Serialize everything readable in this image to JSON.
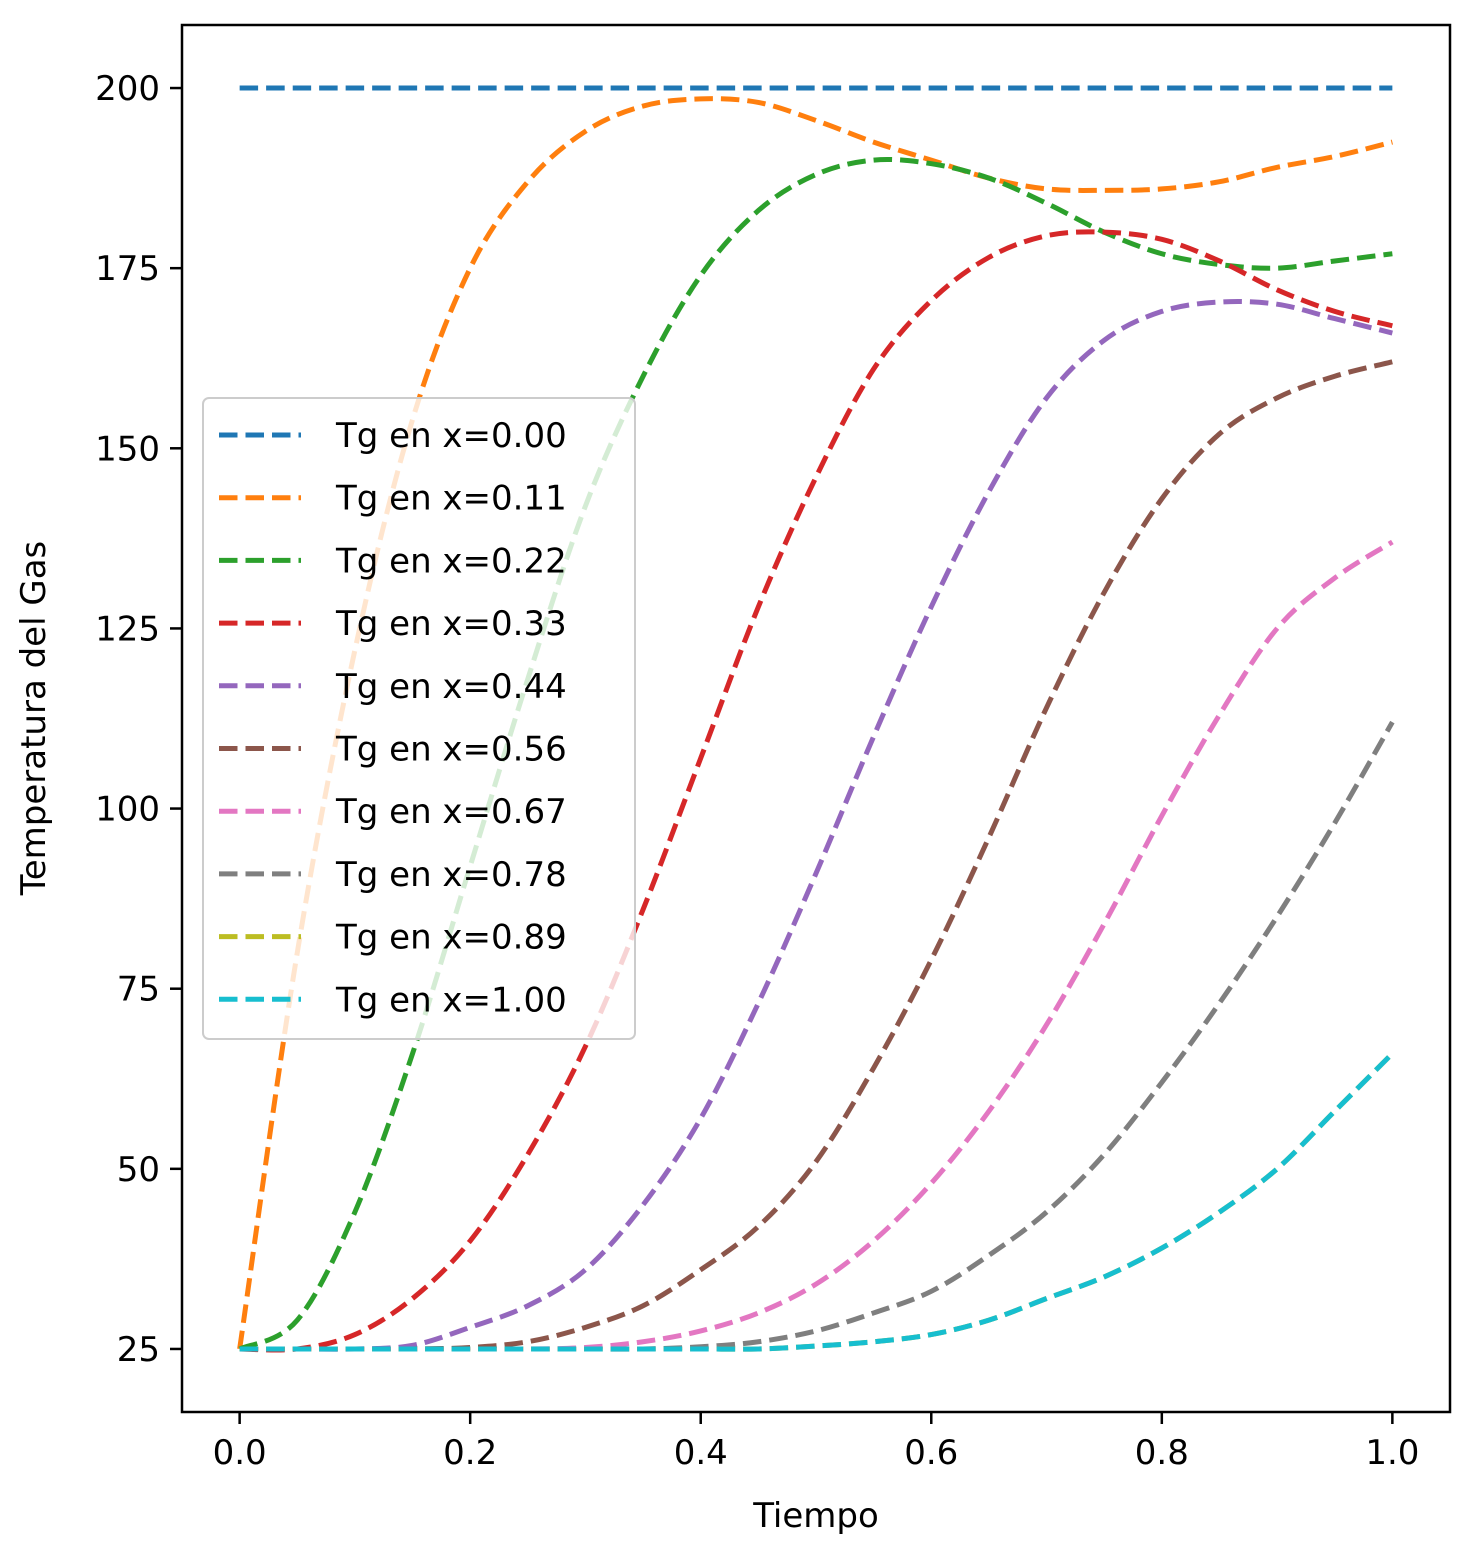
{
  "chart_data": {
    "type": "line",
    "title": "",
    "xlabel": "Tiempo",
    "ylabel": "Temperatura del Gas",
    "xlim": [
      -0.05,
      1.05
    ],
    "ylim": [
      16.25,
      208.75
    ],
    "xticks": [
      0.0,
      0.2,
      0.4,
      0.6,
      0.8,
      1.0
    ],
    "xtick_labels": [
      "0.0",
      "0.2",
      "0.4",
      "0.6",
      "0.8",
      "1.0"
    ],
    "yticks": [
      25,
      50,
      75,
      100,
      125,
      150,
      175,
      200
    ],
    "ytick_labels": [
      "25",
      "50",
      "75",
      "100",
      "125",
      "150",
      "175",
      "200"
    ],
    "grid": false,
    "legend_position": "center-left",
    "line_style": "dashed",
    "x": [
      0.0,
      0.05,
      0.1,
      0.15,
      0.2,
      0.25,
      0.3,
      0.35,
      0.4,
      0.45,
      0.5,
      0.55,
      0.6,
      0.65,
      0.7,
      0.75,
      0.8,
      0.85,
      0.9,
      0.95,
      1.0
    ],
    "series": [
      {
        "name": "Tg en x=0.00",
        "color": "#1f77b4",
        "values": [
          200,
          200,
          200,
          200,
          200,
          200,
          200,
          200,
          200,
          200,
          200,
          200,
          200,
          200,
          200,
          200,
          200,
          200,
          200,
          200,
          200
        ]
      },
      {
        "name": "Tg en x=0.11",
        "color": "#ff7f0e",
        "values": [
          25,
          80,
          122,
          154,
          175,
          187,
          194,
          197.5,
          198.5,
          198,
          195.5,
          192.5,
          190,
          187.5,
          186,
          185.8,
          186,
          187,
          189,
          190.5,
          192.5
        ]
      },
      {
        "name": "Tg en x=0.22",
        "color": "#2ca02c",
        "values": [
          25,
          29,
          44,
          66,
          92,
          118,
          142,
          160,
          174,
          183,
          188,
          190,
          189.5,
          187.5,
          184,
          180,
          177,
          175.5,
          175,
          176,
          177
        ]
      },
      {
        "name": "Tg en x=0.33",
        "color": "#d62728",
        "values": [
          25,
          25,
          27,
          32,
          40,
          52,
          67,
          86,
          107,
          128,
          146,
          161,
          170.5,
          176.5,
          179.5,
          180,
          179,
          176,
          172,
          169,
          167
        ]
      },
      {
        "name": "Tg en x=0.44",
        "color": "#9467bd",
        "values": [
          25,
          25,
          25,
          25.5,
          28,
          31,
          36,
          45,
          57,
          73,
          91,
          110,
          128,
          144,
          157,
          165,
          169,
          170.3,
          170,
          168,
          166
        ]
      },
      {
        "name": "Tg en x=0.56",
        "color": "#8c564b",
        "values": [
          25,
          25,
          25,
          25,
          25.2,
          26,
          28,
          31,
          36,
          42,
          51,
          64,
          79,
          96,
          114,
          130,
          143,
          152,
          157,
          160,
          162
        ]
      },
      {
        "name": "Tg en x=0.67",
        "color": "#e377c2",
        "values": [
          25,
          25,
          25,
          25,
          25,
          25,
          25.2,
          26,
          27.5,
          30,
          34,
          40,
          48,
          58,
          70,
          84,
          99,
          113,
          125,
          132,
          137
        ]
      },
      {
        "name": "Tg en x=0.78",
        "color": "#7f7f7f",
        "values": [
          25,
          25,
          25,
          25,
          25,
          25,
          25,
          25,
          25.3,
          26,
          27.5,
          30,
          33,
          38,
          44,
          52,
          62,
          73,
          85,
          98,
          112
        ]
      },
      {
        "name": "Tg en x=0.89",
        "color": "#bcbd22",
        "values": [
          25,
          25,
          25,
          25,
          25,
          25,
          25,
          25,
          25,
          25,
          25.4,
          26,
          27,
          29,
          32,
          35,
          39,
          44,
          50,
          58,
          66
        ]
      },
      {
        "name": "Tg en x=1.00",
        "color": "#17becf",
        "values": [
          25,
          25,
          25,
          25,
          25,
          25,
          25,
          25,
          25,
          25,
          25.4,
          26,
          27,
          29,
          32,
          35,
          39,
          44,
          50,
          58,
          66
        ]
      }
    ]
  }
}
